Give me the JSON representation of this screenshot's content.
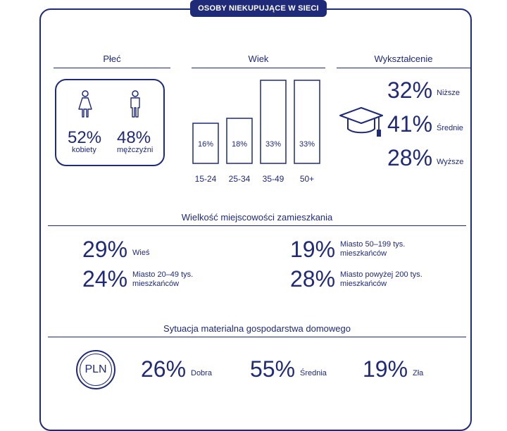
{
  "title": "OSOBY NIEKUPUJĄCE W SIECI",
  "colors": {
    "primary": "#1f2a78",
    "background": "#ffffff"
  },
  "gender": {
    "heading": "Płeć",
    "female": {
      "value": "52%",
      "label": "kobiety",
      "icon": "female-person-icon"
    },
    "male": {
      "value": "48%",
      "label": "mężczyźni",
      "icon": "male-person-icon"
    }
  },
  "chart_data": {
    "type": "bar",
    "title": "Wiek",
    "categories": [
      "15-24",
      "25-34",
      "35-49",
      "50+"
    ],
    "values": [
      16,
      18,
      33,
      33
    ],
    "value_labels": [
      "16%",
      "18%",
      "33%",
      "33%"
    ],
    "ylim": [
      0,
      33
    ],
    "grid": false
  },
  "education": {
    "heading": "Wykształcenie",
    "icon": "graduation-cap-icon",
    "items": [
      {
        "value": "32%",
        "label": "Niższe"
      },
      {
        "value": "41%",
        "label": "Średnie"
      },
      {
        "value": "28%",
        "label": "Wyższe"
      }
    ]
  },
  "town": {
    "heading": "Wielkość miejscowości zamieszkania",
    "items": [
      {
        "value": "29%",
        "label": "Wieś"
      },
      {
        "value": "24%",
        "label": "Miasto 20–49 tys. mieszkańców"
      },
      {
        "value": "19%",
        "label": "Miasto 50–199 tys. mieszkańców"
      },
      {
        "value": "28%",
        "label": "Miasto powyżej 200 tys. mieszkańców"
      }
    ]
  },
  "wealth": {
    "heading": "Sytuacja materialna gospodarstwa domowego",
    "badge": "PLN",
    "items": [
      {
        "value": "26%",
        "label": "Dobra"
      },
      {
        "value": "55%",
        "label": "Średnia"
      },
      {
        "value": "19%",
        "label": "Zła"
      }
    ]
  }
}
